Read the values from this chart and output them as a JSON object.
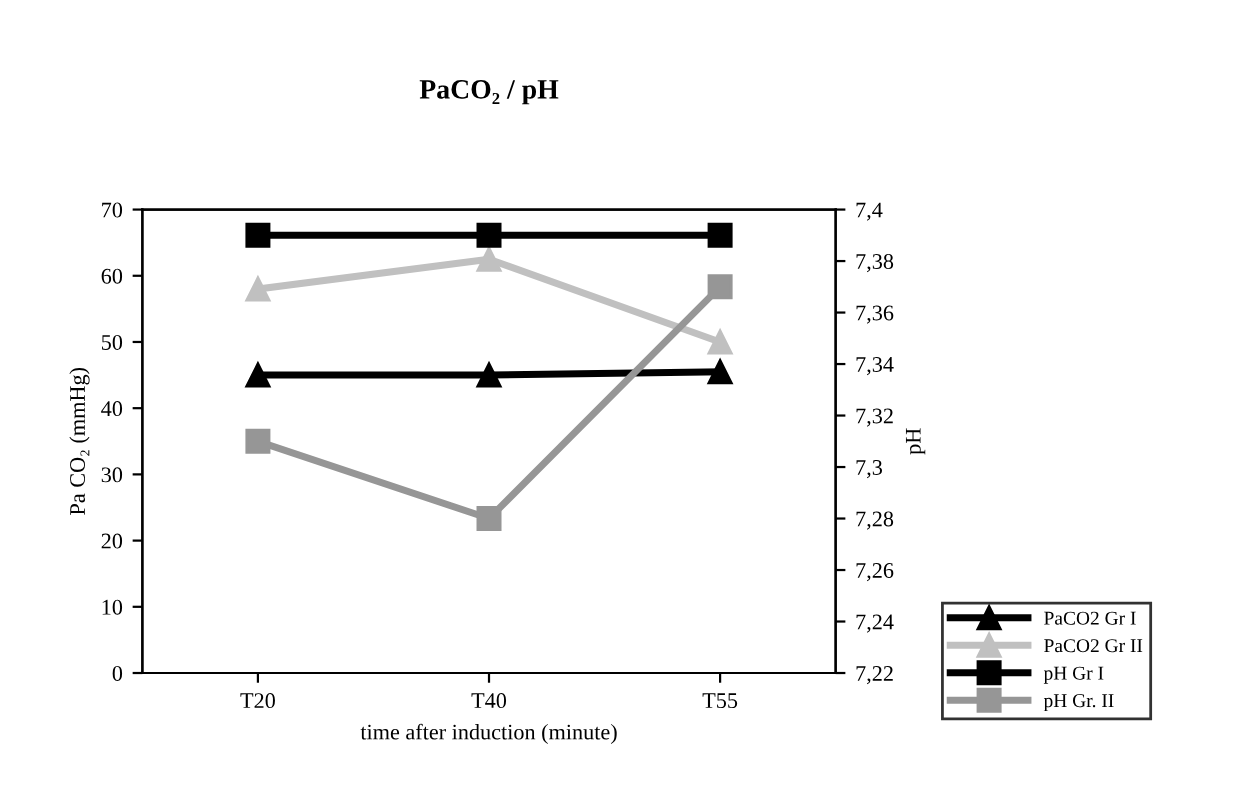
{
  "chart_data": {
    "type": "line",
    "title": "PaCO₂ / pH",
    "xlabel": "time after induction (minute)",
    "ylabel": "Pa CO₂ (mmHg)",
    "y2label": "pH",
    "categories": [
      "T20",
      "T40",
      "T55"
    ],
    "series": [
      {
        "name": "PaCO2 Gr I",
        "color": "#000000",
        "values": [
          45,
          45,
          45.5
        ],
        "marker": "triangle"
      },
      {
        "name": "PaCO2 Gr II",
        "color": "#c0c0c0",
        "values": [
          58,
          62.5,
          50
        ],
        "marker": "triangle"
      },
      {
        "name": "pH Gr I",
        "color": "#000000",
        "values": [
          7.39,
          7.39,
          7.39
        ],
        "marker": "square",
        "axis": "y2"
      },
      {
        "name": "pH Gr. II",
        "color": "#969696",
        "values": [
          7.31,
          7.28,
          7.37
        ],
        "marker": "square",
        "axis": "y2"
      }
    ],
    "ylim": [
      0,
      70
    ],
    "yticks": [
      0,
      10,
      20,
      30,
      40,
      50,
      60,
      70
    ],
    "y2lim": [
      7.22,
      7.4
    ],
    "y2ticks": [
      {
        "value": 7.22,
        "label": "7,22"
      },
      {
        "value": 7.24,
        "label": "7,24"
      },
      {
        "value": 7.26,
        "label": "7,26"
      },
      {
        "value": 7.28,
        "label": "7,28"
      },
      {
        "value": 7.3,
        "label": "7,3"
      },
      {
        "value": 7.32,
        "label": "7,32"
      },
      {
        "value": 7.34,
        "label": "7,34"
      },
      {
        "value": 7.36,
        "label": "7,36"
      },
      {
        "value": 7.38,
        "label": "7,38"
      },
      {
        "value": 7.4,
        "label": "7,4"
      }
    ],
    "grid": false,
    "legend": "bottom right",
    "line_style": "solid"
  }
}
